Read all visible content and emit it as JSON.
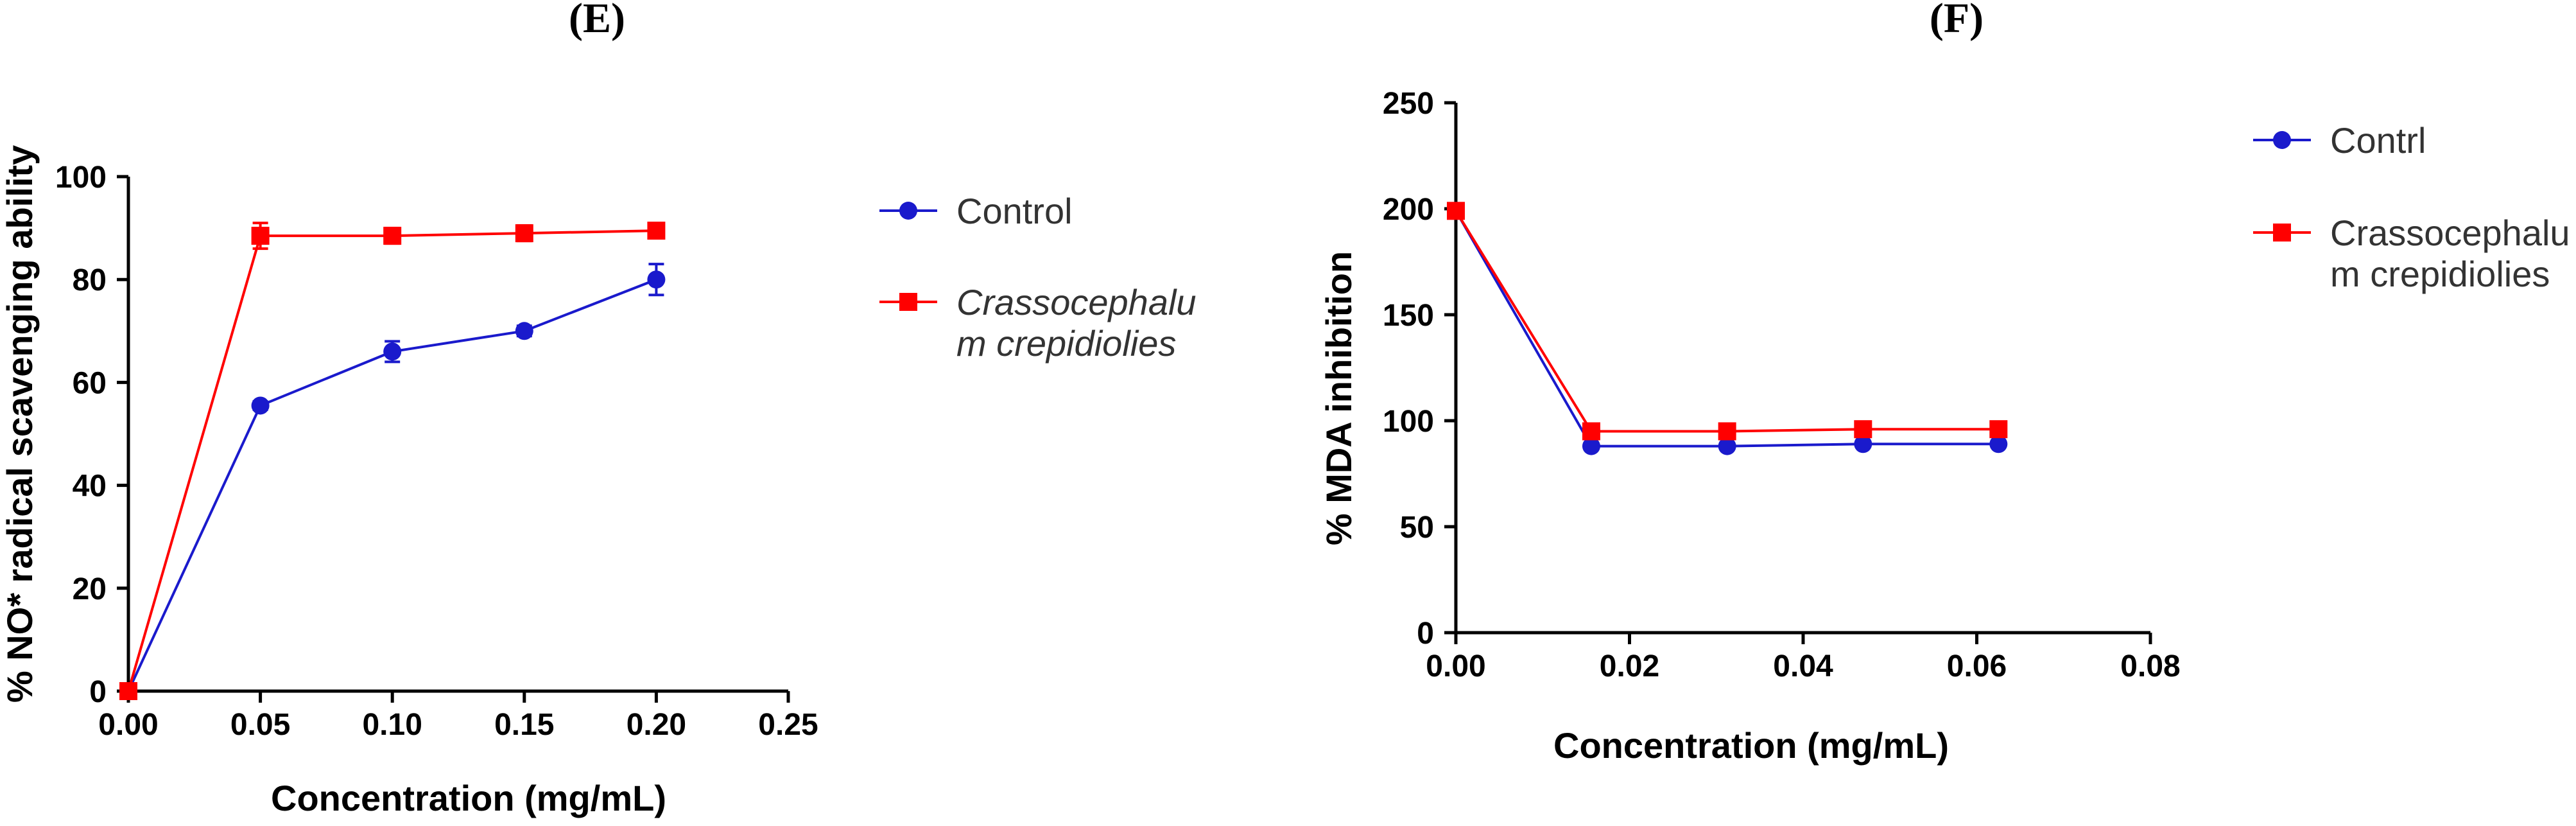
{
  "chart_data": [
    {
      "type": "line",
      "panel_label": "(E)",
      "title": "",
      "xlabel": "Concentration (mg/mL)",
      "ylabel": "% NO* radical scavenging ability",
      "xlim": [
        0,
        0.25
      ],
      "ylim": [
        0,
        100
      ],
      "xticks": [
        0,
        0.05,
        0.1,
        0.15,
        0.2,
        0.25
      ],
      "xtick_labels": [
        "0.00",
        "0.05",
        "0.10",
        "0.15",
        "0.20",
        "0.25"
      ],
      "yticks": [
        0,
        20,
        40,
        60,
        80,
        100
      ],
      "ytick_labels": [
        "0",
        "20",
        "40",
        "60",
        "80",
        "100"
      ],
      "legend_position": "right",
      "series": [
        {
          "name": "Control",
          "italic": false,
          "color": "#1a1acc",
          "marker": "circle",
          "x": [
            0,
            0.05,
            0.1,
            0.15,
            0.2
          ],
          "y": [
            0,
            55.5,
            66,
            70,
            80
          ],
          "err": [
            0,
            0.8,
            2,
            1,
            3
          ]
        },
        {
          "name": "Crassocephalu\nm crepidiolies",
          "legend_lines": [
            "Crassocephalu",
            "m crepidiolies"
          ],
          "italic": true,
          "color": "#ff0000",
          "marker": "square",
          "x": [
            0,
            0.05,
            0.1,
            0.15,
            0.2
          ],
          "y": [
            0,
            88.5,
            88.5,
            89,
            89.5
          ],
          "err": [
            0,
            2.5,
            1.5,
            1.5,
            1
          ]
        }
      ]
    },
    {
      "type": "line",
      "panel_label": "(F)",
      "title": "",
      "xlabel": "Concentration (mg/mL)",
      "ylabel": "% MDA inhibition",
      "xlim": [
        0,
        0.08
      ],
      "ylim": [
        0,
        250
      ],
      "xticks": [
        0,
        0.02,
        0.04,
        0.06,
        0.08
      ],
      "xtick_labels": [
        "0.00",
        "0.02",
        "0.04",
        "0.06",
        "0.08"
      ],
      "yticks": [
        0,
        50,
        100,
        150,
        200,
        250
      ],
      "ytick_labels": [
        "0",
        "50",
        "100",
        "150",
        "200",
        "250"
      ],
      "legend_position": "right",
      "series": [
        {
          "name": "Contrl",
          "italic": false,
          "color": "#1a1acc",
          "marker": "circle",
          "x": [
            0,
            0.0156,
            0.03125,
            0.0469,
            0.0625
          ],
          "y": [
            199,
            88,
            88,
            89,
            89
          ],
          "err": [
            0,
            0,
            0,
            0,
            0
          ]
        },
        {
          "name": "Crassocephalu\nm crepidiolies",
          "legend_lines": [
            "Crassocephalu",
            "m crepidiolies"
          ],
          "italic": false,
          "color": "#ff0000",
          "marker": "square",
          "x": [
            0,
            0.0156,
            0.03125,
            0.0469,
            0.0625
          ],
          "y": [
            199,
            95,
            95,
            96,
            96
          ],
          "err": [
            0,
            0,
            0,
            0,
            0
          ]
        }
      ]
    }
  ]
}
